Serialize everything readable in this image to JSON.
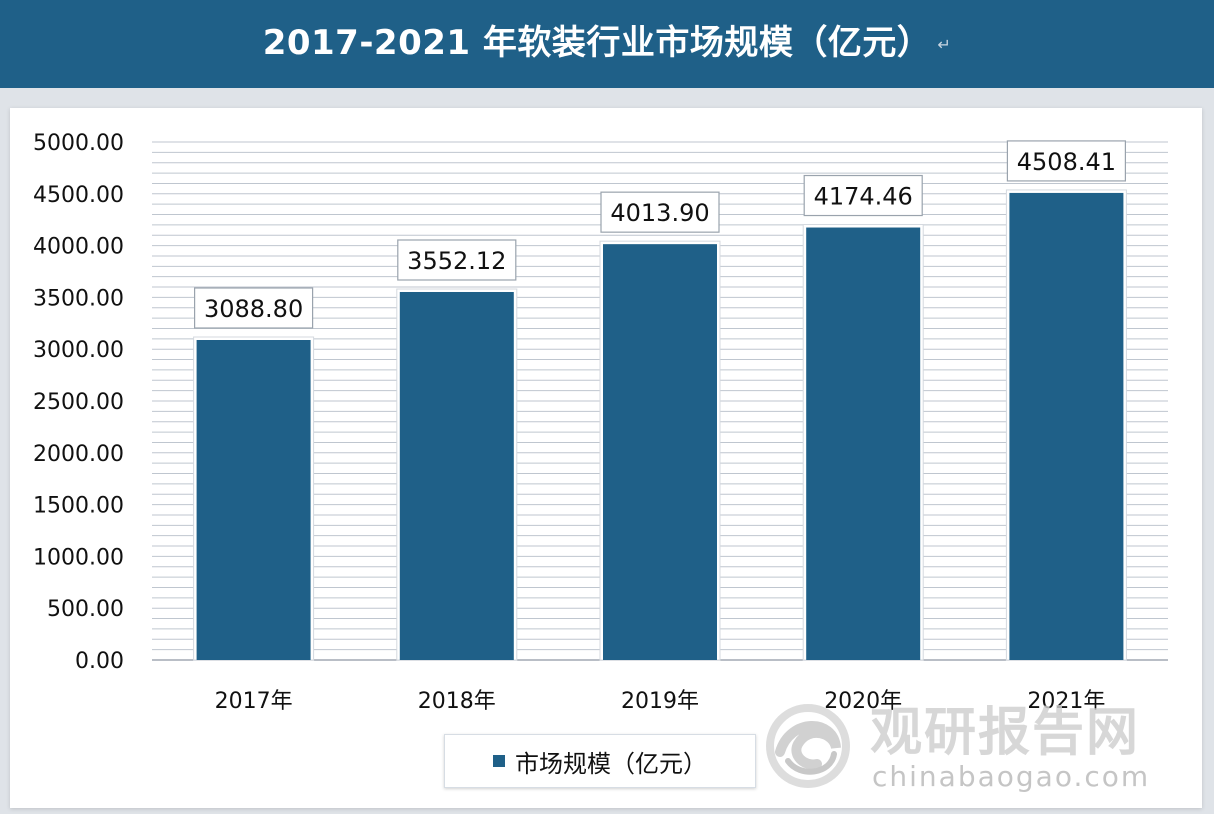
{
  "title_bar": {
    "text": "2017-2021 年软装行业市场规模（亿元）",
    "mark": "↵"
  },
  "chart_data": {
    "type": "bar",
    "title": "2017-2021 年软装行业市场规模（亿元）",
    "categories": [
      "2017年",
      "2018年",
      "2019年",
      "2020年",
      "2021年"
    ],
    "series": [
      {
        "name": "市场规模（亿元）",
        "values": [
          3088.8,
          3552.12,
          4013.9,
          4174.46,
          4508.41
        ]
      }
    ],
    "value_labels": [
      "3088.80",
      "3552.12",
      "4013.90",
      "4174.46",
      "4508.41"
    ],
    "y_ticks": [
      "0.00",
      "500.00",
      "1000.00",
      "1500.00",
      "2000.00",
      "2500.00",
      "3000.00",
      "3500.00",
      "4000.00",
      "4500.00",
      "5000.00"
    ],
    "ylim": [
      0,
      5000
    ],
    "grid": "horizontal",
    "legend_position": "bottom",
    "colors": {
      "bar": "#1f6088",
      "title_bar": "#1f6088"
    }
  },
  "legend": {
    "label": "市场规模（亿元）"
  },
  "watermark": {
    "brand_cn": "观研报告网",
    "brand_en": "chinabaogao.com",
    "logo_icon": "swirl-logo-icon"
  }
}
